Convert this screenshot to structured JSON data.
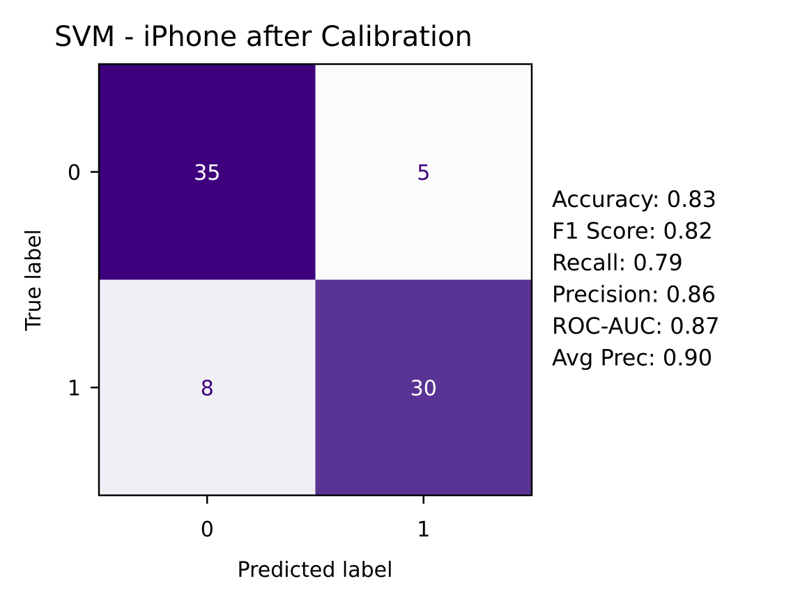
{
  "chart_data": {
    "type": "heatmap",
    "title": "SVM - iPhone after Calibration",
    "xlabel": "Predicted label",
    "ylabel": "True label",
    "x_categories": [
      "0",
      "1"
    ],
    "y_categories": [
      "0",
      "1"
    ],
    "matrix": [
      [
        35,
        5
      ],
      [
        8,
        30
      ]
    ],
    "colormap": "Purples",
    "grid": false,
    "cell_colors": [
      [
        "#3f007d",
        "#fcfbfd"
      ],
      [
        "#f0eff6",
        "#5a3495"
      ]
    ],
    "cell_text_colors": [
      [
        "#ffffff",
        "#3f007d"
      ],
      [
        "#3f007d",
        "#ffffff"
      ]
    ],
    "metrics": [
      "Accuracy: 0.83",
      "F1 Score: 0.82",
      "Recall: 0.79",
      "Precision: 0.86",
      "ROC-AUC: 0.87",
      "Avg Prec: 0.90"
    ]
  }
}
